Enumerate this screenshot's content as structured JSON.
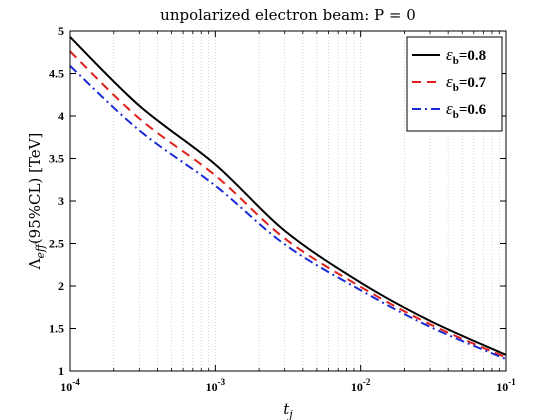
{
  "chart_data": {
    "type": "line",
    "title": "unpolarized electron beam: P = 0",
    "xlabel": "t_j",
    "ylabel": "Λ_eff(95%CL) [TeV]",
    "xscale": "log",
    "xlim": [
      0.0001,
      0.1
    ],
    "ylim": [
      1,
      5
    ],
    "grid": "x-only dotted",
    "legend_position": "top-right",
    "x_ticks": [
      {
        "value": 0.0001,
        "base": "10",
        "exp": "-4"
      },
      {
        "value": 0.001,
        "base": "10",
        "exp": "-3"
      },
      {
        "value": 0.01,
        "base": "10",
        "exp": "-2"
      },
      {
        "value": 0.1,
        "base": "10",
        "exp": "-1"
      }
    ],
    "y_ticks": [
      "1",
      "1.5",
      "2",
      "2.5",
      "3",
      "3.5",
      "4",
      "4.5",
      "5"
    ],
    "x": [
      0.0001,
      0.0003,
      0.001,
      0.003,
      0.01,
      0.03,
      0.1
    ],
    "series": [
      {
        "name": "ε_b=0.8",
        "sym": "ε",
        "sub": "b",
        "value_label": "=0.8",
        "color": "#000000",
        "dash": "solid",
        "values": [
          4.93,
          4.12,
          3.43,
          2.65,
          2.04,
          1.59,
          1.19
        ]
      },
      {
        "name": "ε_b=0.7",
        "sym": "ε",
        "sub": "b",
        "value_label": "=0.7",
        "color": "#e0201b",
        "dash": "dashed",
        "values": [
          4.76,
          3.97,
          3.3,
          2.56,
          1.99,
          1.55,
          1.16
        ]
      },
      {
        "name": "ε_b=0.6",
        "sym": "ε",
        "sub": "b",
        "value_label": "=0.6",
        "color": "#1a2bd6",
        "dash": "dashdot",
        "values": [
          4.59,
          3.83,
          3.18,
          2.49,
          1.95,
          1.52,
          1.14
        ]
      }
    ]
  }
}
